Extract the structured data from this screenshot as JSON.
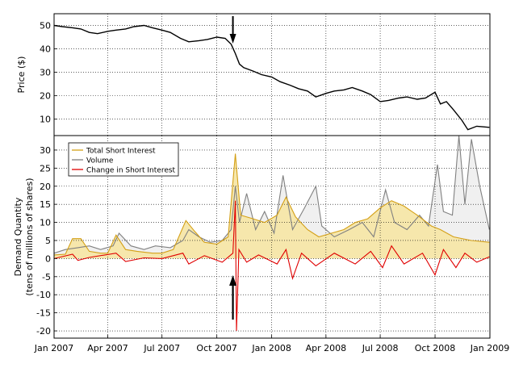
{
  "chart_data": [
    {
      "panel": "top",
      "type": "line",
      "ylabel": "Price ($)",
      "ylim": [
        3,
        55
      ],
      "yticks": [
        10,
        20,
        30,
        40,
        50
      ],
      "grid": "dotted",
      "series": [
        {
          "color": "#000000",
          "points": [
            [
              "2007-01-01",
              50.0
            ],
            [
              "2007-01-15",
              49.5
            ],
            [
              "2007-02-01",
              49.0
            ],
            [
              "2007-02-15",
              48.5
            ],
            [
              "2007-03-01",
              47.0
            ],
            [
              "2007-03-15",
              46.5
            ],
            [
              "2007-04-01",
              47.5
            ],
            [
              "2007-04-15",
              48.0
            ],
            [
              "2007-05-01",
              48.5
            ],
            [
              "2007-05-15",
              49.5
            ],
            [
              "2007-06-01",
              50.0
            ],
            [
              "2007-06-15",
              49.0
            ],
            [
              "2007-07-01",
              48.0
            ],
            [
              "2007-07-15",
              47.0
            ],
            [
              "2007-08-01",
              44.5
            ],
            [
              "2007-08-15",
              43.0
            ],
            [
              "2007-09-01",
              43.5
            ],
            [
              "2007-09-15",
              44.0
            ],
            [
              "2007-10-01",
              45.0
            ],
            [
              "2007-10-15",
              44.5
            ],
            [
              "2007-10-25",
              42.0
            ],
            [
              "2007-11-01",
              38.0
            ],
            [
              "2007-11-08",
              33.5
            ],
            [
              "2007-11-15",
              32.0
            ],
            [
              "2007-12-01",
              30.5
            ],
            [
              "2007-12-15",
              29.0
            ],
            [
              "2008-01-01",
              28.0
            ],
            [
              "2008-01-15",
              26.0
            ],
            [
              "2008-02-01",
              24.5
            ],
            [
              "2008-02-15",
              23.0
            ],
            [
              "2008-03-01",
              22.0
            ],
            [
              "2008-03-15",
              19.5
            ],
            [
              "2008-04-01",
              21.0
            ],
            [
              "2008-04-15",
              22.0
            ],
            [
              "2008-05-01",
              22.5
            ],
            [
              "2008-05-15",
              23.5
            ],
            [
              "2008-06-01",
              22.0
            ],
            [
              "2008-06-15",
              20.5
            ],
            [
              "2008-07-01",
              17.5
            ],
            [
              "2008-07-15",
              18.0
            ],
            [
              "2008-08-01",
              19.0
            ],
            [
              "2008-08-15",
              19.5
            ],
            [
              "2008-09-01",
              18.5
            ],
            [
              "2008-09-15",
              19.0
            ],
            [
              "2008-10-01",
              21.5
            ],
            [
              "2008-10-10",
              16.5
            ],
            [
              "2008-10-20",
              17.5
            ],
            [
              "2008-11-01",
              14.0
            ],
            [
              "2008-11-15",
              9.5
            ],
            [
              "2008-11-25",
              5.5
            ],
            [
              "2008-12-10",
              7.0
            ],
            [
              "2008-12-31",
              6.5
            ]
          ]
        }
      ]
    },
    {
      "panel": "bottom",
      "type": "area",
      "ylabel": "Demand Quantity\n(tens of millions of shares)",
      "ylim": [
        -22,
        34
      ],
      "yticks": [
        -20,
        -15,
        -10,
        -5,
        0,
        5,
        10,
        15,
        20,
        25,
        30
      ],
      "xticks": [
        "Jan 2007",
        "Apr 2007",
        "Jul 2007",
        "Oct 2007",
        "Jan 2008",
        "Apr 2008",
        "Jul 2008",
        "Oct 2008",
        "Jan 2009"
      ],
      "xtick_dates": [
        "2007-01-01",
        "2007-04-01",
        "2007-07-01",
        "2007-10-01",
        "2008-01-01",
        "2008-04-01",
        "2008-07-01",
        "2008-10-01",
        "2009-01-01"
      ],
      "xlim": [
        "2007-01-01",
        "2009-01-01"
      ],
      "grid": "dotted",
      "legend_position": "top-left",
      "series": [
        {
          "name": "Total Short Interest",
          "color": "#d4a017",
          "fill": "#f5e6a8",
          "points": [
            [
              "2007-01-01",
              1.0
            ],
            [
              "2007-01-20",
              1.2
            ],
            [
              "2007-02-01",
              5.5
            ],
            [
              "2007-02-15",
              5.5
            ],
            [
              "2007-03-01",
              2.0
            ],
            [
              "2007-03-20",
              1.5
            ],
            [
              "2007-04-01",
              1.5
            ],
            [
              "2007-04-15",
              6.5
            ],
            [
              "2007-05-01",
              2.5
            ],
            [
              "2007-05-20",
              2.0
            ],
            [
              "2007-06-15",
              1.5
            ],
            [
              "2007-07-01",
              1.5
            ],
            [
              "2007-07-20",
              2.5
            ],
            [
              "2007-08-10",
              10.5
            ],
            [
              "2007-08-25",
              7.5
            ],
            [
              "2007-09-10",
              4.5
            ],
            [
              "2007-10-01",
              4.0
            ],
            [
              "2007-10-20",
              6.0
            ],
            [
              "2007-11-01",
              29.0
            ],
            [
              "2007-11-10",
              12.0
            ],
            [
              "2007-12-01",
              11.0
            ],
            [
              "2007-12-20",
              10.0
            ],
            [
              "2008-01-10",
              12.0
            ],
            [
              "2008-01-25",
              17.0
            ],
            [
              "2008-02-10",
              11.5
            ],
            [
              "2008-03-01",
              8.0
            ],
            [
              "2008-03-20",
              6.0
            ],
            [
              "2008-04-10",
              7.0
            ],
            [
              "2008-05-01",
              8.0
            ],
            [
              "2008-05-20",
              10.0
            ],
            [
              "2008-06-10",
              11.0
            ],
            [
              "2008-07-01",
              14.0
            ],
            [
              "2008-07-20",
              16.0
            ],
            [
              "2008-08-10",
              14.5
            ],
            [
              "2008-09-01",
              12.0
            ],
            [
              "2008-09-25",
              9.0
            ],
            [
              "2008-10-10",
              8.0
            ],
            [
              "2008-11-01",
              6.0
            ],
            [
              "2008-12-01",
              5.0
            ],
            [
              "2008-12-31",
              4.5
            ]
          ]
        },
        {
          "name": "Volume",
          "color": "#808080",
          "fill": "#f0f0f0",
          "points": [
            [
              "2007-01-01",
              1.5
            ],
            [
              "2007-01-20",
              2.5
            ],
            [
              "2007-02-10",
              3.0
            ],
            [
              "2007-03-01",
              3.5
            ],
            [
              "2007-03-20",
              2.5
            ],
            [
              "2007-04-10",
              3.5
            ],
            [
              "2007-04-20",
              7.0
            ],
            [
              "2007-05-10",
              3.5
            ],
            [
              "2007-06-01",
              2.5
            ],
            [
              "2007-06-20",
              3.5
            ],
            [
              "2007-07-15",
              3.0
            ],
            [
              "2007-08-05",
              5.0
            ],
            [
              "2007-08-15",
              8.0
            ],
            [
              "2007-09-01",
              6.0
            ],
            [
              "2007-09-20",
              4.5
            ],
            [
              "2007-10-10",
              5.0
            ],
            [
              "2007-10-25",
              8.0
            ],
            [
              "2007-11-01",
              20.0
            ],
            [
              "2007-11-08",
              10.0
            ],
            [
              "2007-11-20",
              18.0
            ],
            [
              "2007-12-05",
              8.0
            ],
            [
              "2007-12-20",
              13.0
            ],
            [
              "2008-01-05",
              7.0
            ],
            [
              "2008-01-20",
              23.0
            ],
            [
              "2008-02-05",
              8.0
            ],
            [
              "2008-02-25",
              14.0
            ],
            [
              "2008-03-15",
              20.0
            ],
            [
              "2008-03-25",
              9.0
            ],
            [
              "2008-04-15",
              6.0
            ],
            [
              "2008-05-10",
              8.0
            ],
            [
              "2008-06-01",
              10.0
            ],
            [
              "2008-06-20",
              6.0
            ],
            [
              "2008-07-10",
              19.0
            ],
            [
              "2008-07-25",
              10.0
            ],
            [
              "2008-08-15",
              8.0
            ],
            [
              "2008-09-05",
              12.0
            ],
            [
              "2008-09-20",
              9.0
            ],
            [
              "2008-10-05",
              26.0
            ],
            [
              "2008-10-15",
              13.0
            ],
            [
              "2008-10-30",
              12.0
            ],
            [
              "2008-11-10",
              34.0
            ],
            [
              "2008-11-20",
              15.0
            ],
            [
              "2008-12-01",
              33.0
            ],
            [
              "2008-12-15",
              20.0
            ],
            [
              "2008-12-31",
              8.0
            ]
          ]
        },
        {
          "name": "Change in Short Interest",
          "color": "#e00000",
          "points": [
            [
              "2007-01-01",
              0.0
            ],
            [
              "2007-02-01",
              1.2
            ],
            [
              "2007-02-10",
              -0.5
            ],
            [
              "2007-03-01",
              0.3
            ],
            [
              "2007-04-15",
              1.5
            ],
            [
              "2007-05-01",
              -0.8
            ],
            [
              "2007-06-01",
              0.2
            ],
            [
              "2007-07-01",
              0.0
            ],
            [
              "2007-08-05",
              1.5
            ],
            [
              "2007-08-15",
              -1.5
            ],
            [
              "2007-09-10",
              0.8
            ],
            [
              "2007-10-10",
              -1.0
            ],
            [
              "2007-10-28",
              1.5
            ],
            [
              "2007-11-01",
              16.0
            ],
            [
              "2007-11-03",
              -20.0
            ],
            [
              "2007-11-07",
              2.5
            ],
            [
              "2007-11-20",
              -1.0
            ],
            [
              "2007-12-10",
              1.0
            ],
            [
              "2008-01-10",
              -1.5
            ],
            [
              "2008-01-25",
              2.5
            ],
            [
              "2008-02-05",
              -5.5
            ],
            [
              "2008-02-20",
              1.5
            ],
            [
              "2008-03-15",
              -2.0
            ],
            [
              "2008-04-15",
              1.5
            ],
            [
              "2008-05-20",
              -1.5
            ],
            [
              "2008-06-15",
              2.0
            ],
            [
              "2008-07-05",
              -2.5
            ],
            [
              "2008-07-20",
              3.5
            ],
            [
              "2008-08-10",
              -1.5
            ],
            [
              "2008-09-10",
              1.5
            ],
            [
              "2008-10-01",
              -4.5
            ],
            [
              "2008-10-15",
              2.5
            ],
            [
              "2008-11-05",
              -2.5
            ],
            [
              "2008-11-20",
              1.5
            ],
            [
              "2008-12-10",
              -1.0
            ],
            [
              "2008-12-31",
              0.5
            ]
          ]
        }
      ]
    }
  ],
  "annotations": [
    {
      "panel": "top",
      "date": "2007-11-01",
      "direction": "down"
    },
    {
      "panel": "bottom",
      "date": "2007-11-01",
      "direction": "up"
    }
  ]
}
